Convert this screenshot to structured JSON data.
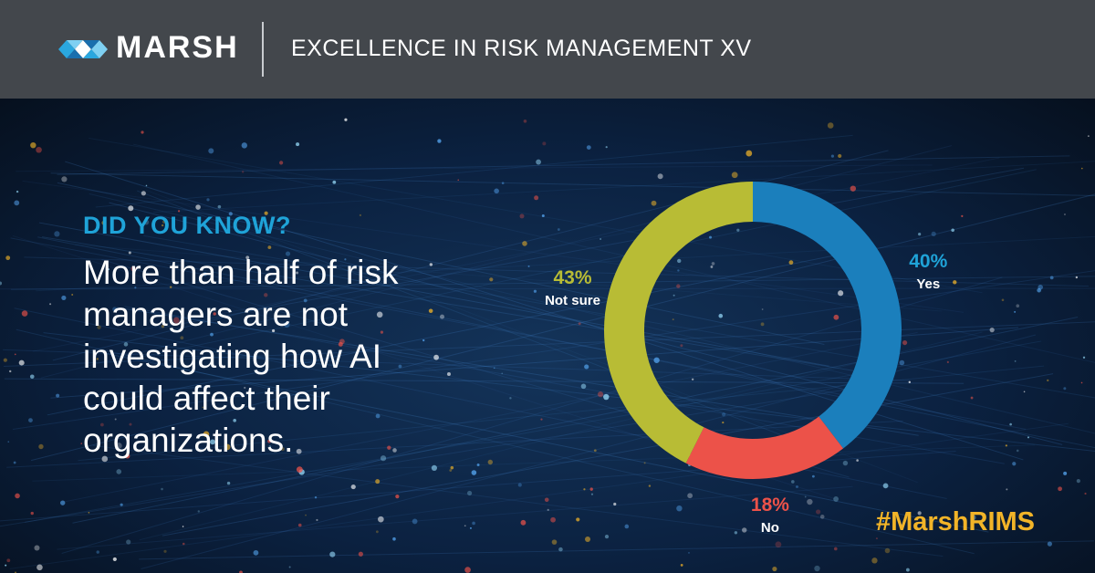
{
  "header": {
    "brand": "MARSH",
    "subtitle": "EXCELLENCE IN RISK MANAGEMENT XV"
  },
  "content": {
    "eyebrow": "DID YOU KNOW?",
    "statement": "More than half of risk managers are not investigating how AI could affect their organizations."
  },
  "hashtag": "#MarshRIMS",
  "chart_data": {
    "type": "pie",
    "donut": true,
    "slices": [
      {
        "label": "Yes",
        "value": 40,
        "display": "40%",
        "color": "#1b7fbc",
        "pct_color": "#1fa3d8"
      },
      {
        "label": "No",
        "value": 18,
        "display": "18%",
        "color": "#ec5249",
        "pct_color": "#ec5249"
      },
      {
        "label": "Not sure",
        "value": 43,
        "display": "43%",
        "color": "#b8bc35",
        "pct_color": "#b8bc35"
      }
    ]
  },
  "colors": {
    "header_bg": "#43474c",
    "accent_blue": "#1fa3d8",
    "hashtag": "#f2b428"
  }
}
